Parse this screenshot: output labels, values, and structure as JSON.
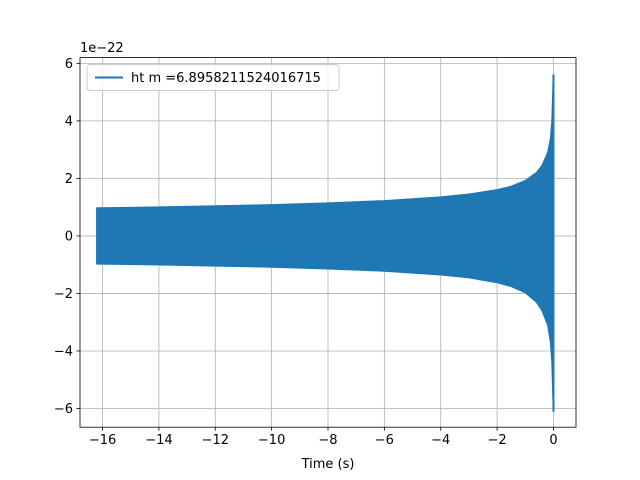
{
  "chart_data": {
    "type": "line",
    "xlabel": "Time (s)",
    "ylabel": "",
    "y_offset_text": "1e−22",
    "xlim": [
      -16.8,
      0.8
    ],
    "ylim": [
      -6.65,
      6.2
    ],
    "xticks": [
      -16,
      -14,
      -12,
      -10,
      -8,
      -6,
      -4,
      -2,
      0
    ],
    "xtick_labels": [
      "−16",
      "−14",
      "−12",
      "−10",
      "−8",
      "−6",
      "−4",
      "−2",
      "0"
    ],
    "yticks": [
      -6,
      -4,
      -2,
      0,
      2,
      4,
      6
    ],
    "ytick_labels": [
      "−6",
      "−4",
      "−2",
      "0",
      "2",
      "4",
      "6"
    ],
    "grid": true,
    "legend_position": "top-left",
    "series": [
      {
        "name": "ht m =6.8958211524016715",
        "color": "#1f77b4",
        "envelope_time": [
          -16.2,
          -14,
          -12,
          -10,
          -8,
          -6,
          -4,
          -3,
          -2,
          -1.5,
          -1,
          -0.6,
          -0.4,
          -0.2,
          -0.1,
          -0.05,
          0
        ],
        "envelope_upper": [
          0.97,
          1.0,
          1.04,
          1.08,
          1.14,
          1.22,
          1.35,
          1.45,
          1.6,
          1.72,
          1.92,
          2.2,
          2.45,
          2.9,
          3.4,
          4.0,
          5.6
        ],
        "envelope_lower": [
          -0.97,
          -1.0,
          -1.04,
          -1.08,
          -1.14,
          -1.22,
          -1.35,
          -1.45,
          -1.62,
          -1.75,
          -1.97,
          -2.3,
          -2.6,
          -3.1,
          -3.7,
          -4.4,
          -6.1
        ]
      }
    ]
  }
}
